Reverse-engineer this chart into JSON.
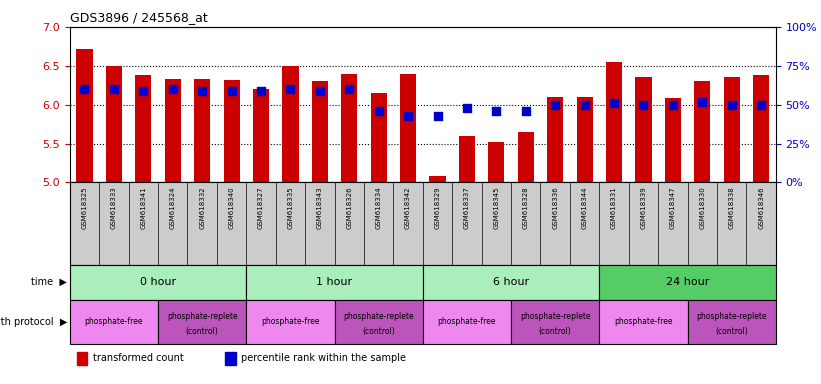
{
  "title": "GDS3896 / 245568_at",
  "samples": [
    "GSM618325",
    "GSM618333",
    "GSM618341",
    "GSM618324",
    "GSM618332",
    "GSM618340",
    "GSM618327",
    "GSM618335",
    "GSM618343",
    "GSM618326",
    "GSM618334",
    "GSM618342",
    "GSM618329",
    "GSM618337",
    "GSM618345",
    "GSM618328",
    "GSM618336",
    "GSM618344",
    "GSM618331",
    "GSM618339",
    "GSM618347",
    "GSM618330",
    "GSM618338",
    "GSM618346"
  ],
  "bar_heights": [
    6.72,
    6.5,
    6.38,
    6.33,
    6.33,
    6.32,
    6.2,
    6.5,
    6.3,
    6.4,
    6.15,
    6.4,
    5.08,
    5.6,
    5.52,
    5.65,
    6.1,
    6.1,
    6.55,
    6.35,
    6.08,
    6.3,
    6.35,
    6.38
  ],
  "percentile_ranks": [
    60,
    60,
    59,
    60,
    59,
    59,
    59,
    60,
    59,
    60,
    46,
    43,
    43,
    48,
    46,
    46,
    50,
    50,
    51,
    50,
    50,
    52,
    50,
    50
  ],
  "ylim_left": [
    5.0,
    7.0
  ],
  "ylim_right": [
    0,
    100
  ],
  "yticks_left": [
    5.0,
    5.5,
    6.0,
    6.5,
    7.0
  ],
  "yticks_right": [
    0,
    25,
    50,
    75,
    100
  ],
  "hgrid_vals": [
    5.5,
    6.0,
    6.5
  ],
  "bar_color": "#cc0000",
  "dot_color": "#0000cc",
  "dot_size": 30,
  "bar_width": 0.55,
  "sample_bg_color": "#cccccc",
  "bg_color": "#ffffff",
  "tick_color_left": "#cc0000",
  "tick_color_right": "#0000cc",
  "time_groups": [
    {
      "label": "0 hour",
      "start": 0,
      "end": 6,
      "color": "#aaeebb"
    },
    {
      "label": "1 hour",
      "start": 6,
      "end": 12,
      "color": "#aaeebb"
    },
    {
      "label": "6 hour",
      "start": 12,
      "end": 18,
      "color": "#aaeebb"
    },
    {
      "label": "24 hour",
      "start": 18,
      "end": 24,
      "color": "#55cc66"
    }
  ],
  "protocol_groups": [
    {
      "label": "phosphate-free",
      "start": 0,
      "end": 3,
      "replete": false
    },
    {
      "label": "phosphate-replete\n(control)",
      "start": 3,
      "end": 6,
      "replete": true
    },
    {
      "label": "phosphate-free",
      "start": 6,
      "end": 9,
      "replete": false
    },
    {
      "label": "phosphate-replete\n(control)",
      "start": 9,
      "end": 12,
      "replete": true
    },
    {
      "label": "phosphate-free",
      "start": 12,
      "end": 15,
      "replete": false
    },
    {
      "label": "phosphate-replete\n(control)",
      "start": 15,
      "end": 18,
      "replete": true
    },
    {
      "label": "phosphate-free",
      "start": 18,
      "end": 21,
      "replete": false
    },
    {
      "label": "phosphate-replete\n(control)",
      "start": 21,
      "end": 24,
      "replete": true
    }
  ],
  "color_phosphate_free": "#ee88ee",
  "color_phosphate_replete": "#bb55bb"
}
